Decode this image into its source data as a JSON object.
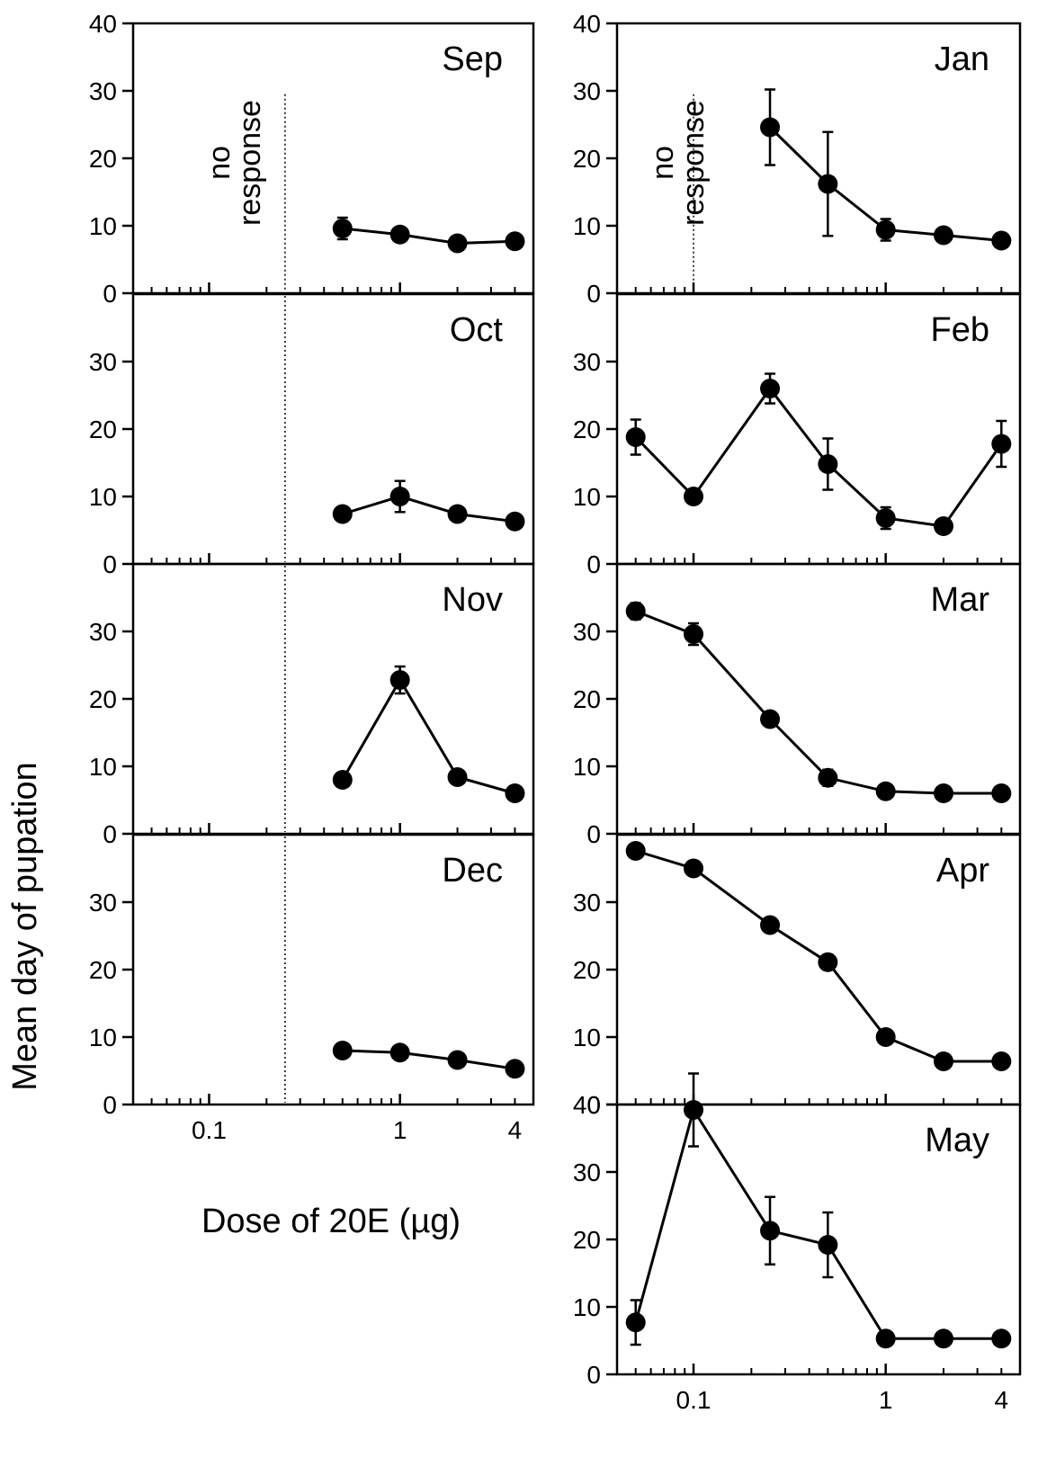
{
  "figure": {
    "ylabel": "Mean day of pupation",
    "xlabel": "Dose of 20E (µg)",
    "no_response_label": [
      "no",
      "response"
    ]
  },
  "chart_data": [
    {
      "type": "line",
      "title": "Sep",
      "column": "left",
      "xscale": "log",
      "xlim": [
        0.04,
        5
      ],
      "ylim": [
        0,
        40
      ],
      "yticks": [
        0,
        10,
        20,
        30,
        40
      ],
      "xticks": [],
      "no_response_below": 0.25,
      "no_response_label": true,
      "x": [
        0.5,
        1,
        2,
        4
      ],
      "y": [
        9.6,
        8.7,
        7.4,
        7.7
      ],
      "err": [
        1.6,
        0,
        0,
        0
      ]
    },
    {
      "type": "line",
      "title": "Oct",
      "column": "left",
      "xscale": "log",
      "xlim": [
        0.04,
        5
      ],
      "ylim": [
        0,
        40
      ],
      "yticks": [
        0,
        10,
        20,
        30
      ],
      "xticks": [],
      "no_response_below": 0.25,
      "no_response_label": false,
      "x": [
        0.5,
        1,
        2,
        4
      ],
      "y": [
        7.4,
        10.0,
        7.4,
        6.3
      ],
      "err": [
        0,
        2.3,
        0,
        0
      ]
    },
    {
      "type": "line",
      "title": "Nov",
      "column": "left",
      "xscale": "log",
      "xlim": [
        0.04,
        5
      ],
      "ylim": [
        0,
        40
      ],
      "yticks": [
        0,
        10,
        20,
        30
      ],
      "xticks": [],
      "no_response_below": 0.25,
      "no_response_label": false,
      "x": [
        0.5,
        1,
        2,
        4
      ],
      "y": [
        8.0,
        22.8,
        8.4,
        6.0
      ],
      "err": [
        0,
        2.0,
        0,
        0
      ]
    },
    {
      "type": "line",
      "title": "Dec",
      "column": "left",
      "xscale": "log",
      "xlim": [
        0.04,
        5
      ],
      "ylim": [
        0,
        40
      ],
      "yticks": [
        0,
        10,
        20,
        30
      ],
      "xticks": [
        {
          "v": 0.1,
          "label": "0.1"
        },
        {
          "v": 1,
          "label": "1"
        },
        {
          "v": 4,
          "label": "4"
        }
      ],
      "no_response_below": 0.25,
      "no_response_label": false,
      "x": [
        0.5,
        1,
        2,
        4
      ],
      "y": [
        8.0,
        7.7,
        6.6,
        5.3
      ],
      "err": [
        0,
        0,
        0,
        0
      ]
    },
    {
      "type": "line",
      "title": "Jan",
      "column": "right",
      "xscale": "log",
      "xlim": [
        0.04,
        5
      ],
      "ylim": [
        0,
        40
      ],
      "yticks": [
        0,
        10,
        20,
        30,
        40
      ],
      "xticks": [],
      "no_response_below": 0.1,
      "no_response_label": true,
      "x": [
        0.25,
        0.5,
        1,
        2,
        4
      ],
      "y": [
        24.6,
        16.2,
        9.4,
        8.6,
        7.8
      ],
      "err": [
        5.6,
        7.7,
        1.6,
        0,
        0
      ]
    },
    {
      "type": "line",
      "title": "Feb",
      "column": "right",
      "xscale": "log",
      "xlim": [
        0.04,
        5
      ],
      "ylim": [
        0,
        40
      ],
      "yticks": [
        0,
        10,
        20,
        30
      ],
      "xticks": [],
      "no_response_below": null,
      "no_response_label": false,
      "x": [
        0.05,
        0.1,
        0.25,
        0.5,
        1,
        2,
        4
      ],
      "y": [
        18.8,
        10.0,
        26.0,
        14.8,
        6.8,
        5.6,
        17.8
      ],
      "err": [
        2.6,
        0,
        2.2,
        3.8,
        1.6,
        0,
        3.4
      ]
    },
    {
      "type": "line",
      "title": "Mar",
      "column": "right",
      "xscale": "log",
      "xlim": [
        0.04,
        5
      ],
      "ylim": [
        0,
        40
      ],
      "yticks": [
        0,
        10,
        20,
        30
      ],
      "xticks": [],
      "no_response_below": null,
      "no_response_label": false,
      "x": [
        0.05,
        0.1,
        0.25,
        0.5,
        1,
        2,
        4
      ],
      "y": [
        33.0,
        29.6,
        17.0,
        8.3,
        6.3,
        6.0,
        6.0
      ],
      "err": [
        1.2,
        1.6,
        0,
        1.2,
        0,
        0,
        0
      ]
    },
    {
      "type": "line",
      "title": "Apr",
      "column": "right",
      "xscale": "log",
      "xlim": [
        0.04,
        5
      ],
      "ylim": [
        0,
        40
      ],
      "yticks": [
        0,
        10,
        20,
        30
      ],
      "xticks": [],
      "no_response_below": null,
      "no_response_label": false,
      "x": [
        0.05,
        0.1,
        0.25,
        0.5,
        1,
        2,
        4
      ],
      "y": [
        37.6,
        35.0,
        26.6,
        21.1,
        10.0,
        6.4,
        6.4
      ],
      "err": [
        0,
        0,
        0,
        1.1,
        1.0,
        0,
        0
      ]
    },
    {
      "type": "line",
      "title": "May",
      "column": "right",
      "xscale": "log",
      "xlim": [
        0.04,
        5
      ],
      "ylim": [
        0,
        40
      ],
      "yticks": [
        0,
        10,
        20,
        30,
        40
      ],
      "xticks": [
        {
          "v": 0.1,
          "label": "0.1"
        },
        {
          "v": 1,
          "label": "1"
        },
        {
          "v": 4,
          "label": "4"
        }
      ],
      "no_response_below": null,
      "no_response_label": false,
      "x": [
        0.05,
        0.1,
        0.25,
        0.5,
        1,
        2,
        4
      ],
      "y": [
        7.7,
        39.2,
        21.3,
        19.2,
        5.3,
        5.3,
        5.3
      ],
      "err": [
        3.3,
        5.4,
        5.0,
        4.8,
        0,
        0,
        0
      ]
    }
  ]
}
